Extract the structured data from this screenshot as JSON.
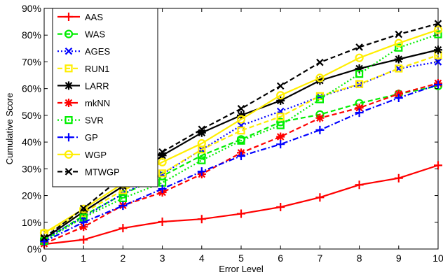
{
  "chart_data": {
    "type": "line",
    "xlabel": "Error Level",
    "ylabel": "Cumulative Score",
    "xlim": [
      0,
      10
    ],
    "ylim": [
      0,
      90
    ],
    "x_ticks": [
      "0",
      "1",
      "2",
      "3",
      "4",
      "5",
      "6",
      "7",
      "8",
      "9",
      "10"
    ],
    "y_ticks": [
      "0%",
      "10%",
      "20%",
      "30%",
      "40%",
      "50%",
      "60%",
      "70%",
      "80%",
      "90%"
    ],
    "legend_position": "top-left",
    "grid": false,
    "x": [
      0,
      1,
      2,
      3,
      4,
      5,
      6,
      7,
      8,
      9,
      10
    ],
    "series": [
      {
        "name": "AAS",
        "color": "#ff0000",
        "dash": "solid",
        "marker": "plus",
        "values": [
          1.8,
          3.5,
          7.8,
          10.2,
          11.2,
          13.2,
          15.7,
          19.3,
          24.0,
          26.5,
          31.3
        ]
      },
      {
        "name": "WAS",
        "color": "#00ee00",
        "dash": "dashed",
        "marker": "circle",
        "values": [
          3.3,
          12.5,
          20.5,
          27.3,
          35.0,
          41.0,
          47.5,
          50.3,
          54.5,
          58.0,
          61.0
        ]
      },
      {
        "name": "AGES",
        "color": "#0000ff",
        "dash": "dotted",
        "marker": "x",
        "values": [
          3.7,
          12.0,
          20.7,
          28.0,
          37.2,
          46.2,
          51.5,
          57.0,
          61.5,
          67.5,
          70.0
        ]
      },
      {
        "name": "RUN1",
        "color": "#ffee00",
        "dash": "dashed",
        "marker": "square",
        "values": [
          5.8,
          13.5,
          22.0,
          28.3,
          37.2,
          44.3,
          49.5,
          57.2,
          61.7,
          67.5,
          72.5
        ]
      },
      {
        "name": "LARR",
        "color": "#000000",
        "dash": "solid",
        "marker": "star",
        "values": [
          3.8,
          14.0,
          23.5,
          35.0,
          43.5,
          50.0,
          55.5,
          63.0,
          67.5,
          71.0,
          74.5
        ]
      },
      {
        "name": "mkNN",
        "color": "#ff0000",
        "dash": "dashed",
        "marker": "star",
        "values": [
          2.0,
          8.3,
          16.3,
          21.2,
          28.0,
          36.0,
          42.0,
          49.0,
          52.8,
          58.0,
          62.0
        ]
      },
      {
        "name": "SVR",
        "color": "#00ee00",
        "dash": "dotted",
        "marker": "square",
        "values": [
          3.0,
          11.8,
          19.0,
          24.8,
          33.2,
          40.5,
          46.3,
          56.0,
          65.5,
          75.3,
          80.3
        ]
      },
      {
        "name": "GP",
        "color": "#0000ff",
        "dash": "dashdot",
        "marker": "plus",
        "values": [
          2.8,
          10.0,
          16.2,
          22.5,
          29.0,
          34.8,
          39.2,
          44.5,
          51.0,
          56.5,
          61.5
        ]
      },
      {
        "name": "WGP",
        "color": "#ffee00",
        "dash": "solid",
        "marker": "circle",
        "values": [
          6.0,
          15.0,
          24.5,
          32.5,
          39.5,
          48.5,
          57.5,
          64.0,
          71.5,
          77.0,
          82.0
        ]
      },
      {
        "name": "MTWGP",
        "color": "#000000",
        "dash": "dashed",
        "marker": "x",
        "values": [
          4.2,
          15.2,
          27.2,
          36.3,
          44.8,
          52.5,
          61.0,
          69.8,
          75.5,
          80.3,
          84.3
        ]
      }
    ]
  }
}
